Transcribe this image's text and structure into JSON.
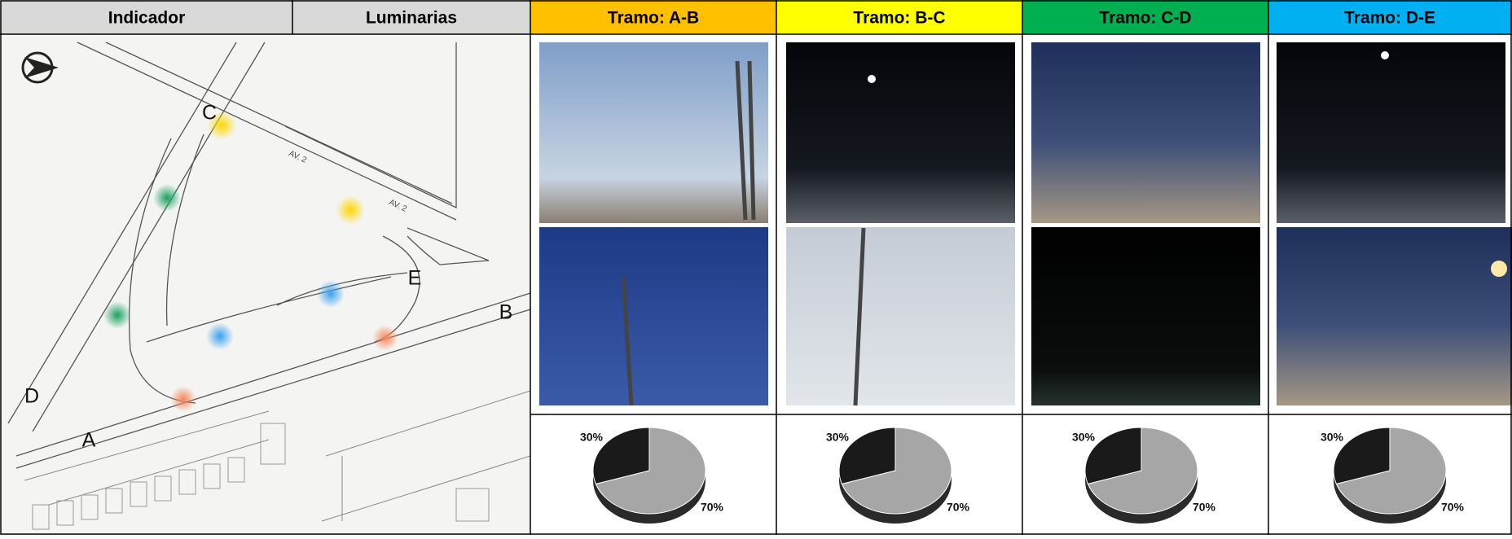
{
  "header": {
    "cells": [
      "Indicador",
      "Luminarias",
      "Tramo:  A-B",
      "Tramo:  B-C",
      "Tramo:  C-D",
      "Tramo:  D-E"
    ]
  },
  "map": {
    "points": [
      "C",
      "E",
      "B",
      "D",
      "A"
    ],
    "streets": [
      "AV. 2",
      "AV. 2"
    ]
  },
  "chart_data": [
    {
      "type": "pie",
      "values": [
        70,
        30
      ],
      "value_labels": [
        "70%",
        "30%"
      ],
      "colors": [
        "#a6a6a6",
        "#1a1a1a"
      ]
    },
    {
      "type": "pie",
      "values": [
        70,
        30
      ],
      "value_labels": [
        "70%",
        "30%"
      ],
      "colors": [
        "#a6a6a6",
        "#1a1a1a"
      ]
    },
    {
      "type": "pie",
      "values": [
        70,
        30
      ],
      "value_labels": [
        "70%",
        "30%"
      ],
      "colors": [
        "#a6a6a6",
        "#1a1a1a"
      ]
    },
    {
      "type": "pie",
      "values": [
        70,
        30
      ],
      "value_labels": [
        "70%",
        "30%"
      ],
      "colors": [
        "#a6a6a6",
        "#1a1a1a"
      ]
    }
  ]
}
